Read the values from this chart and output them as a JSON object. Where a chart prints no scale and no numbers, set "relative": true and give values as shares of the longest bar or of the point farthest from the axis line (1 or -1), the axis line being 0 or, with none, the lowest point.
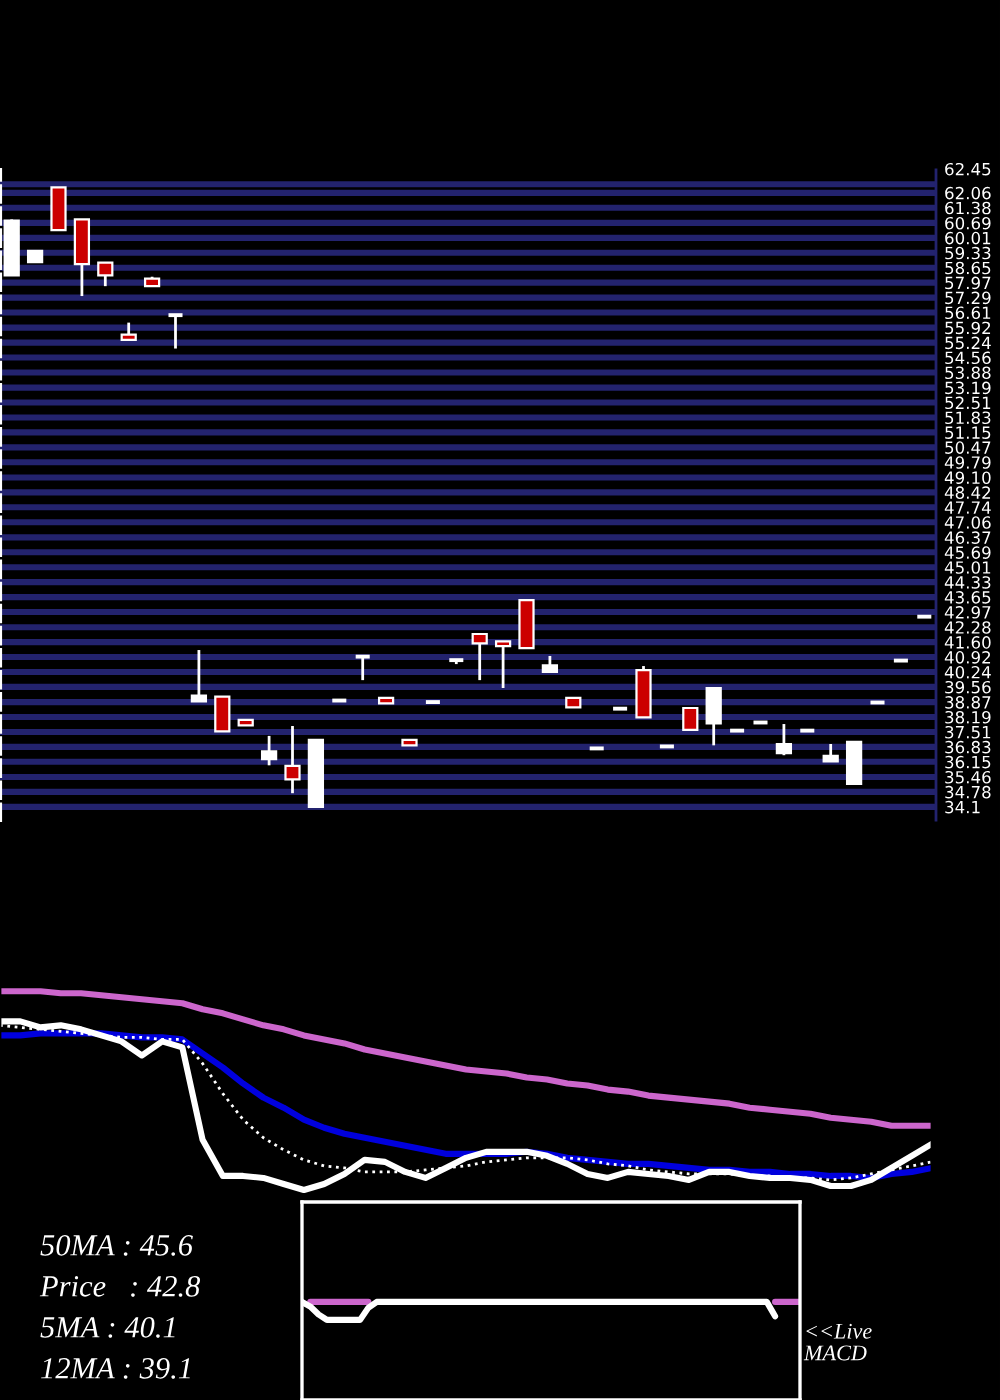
{
  "chart_data": [
    {
      "type": "candlestick",
      "categories": [
        null,
        null,
        null,
        null,
        null,
        null,
        null,
        null,
        null,
        null,
        null,
        null,
        null,
        null,
        null,
        null,
        null,
        null,
        null,
        null,
        null,
        null,
        null,
        null,
        null,
        null,
        null,
        null,
        null,
        null,
        null,
        null,
        null,
        null,
        null,
        null,
        null,
        null,
        null,
        null
      ],
      "ohlc": [
        [
          58.3,
          60.85,
          58.3,
          60.79
        ],
        [
          58.9,
          59.42,
          58.9,
          59.42
        ],
        [
          62.31,
          62.31,
          60.36,
          60.36
        ],
        [
          60.85,
          60.85,
          57.36,
          58.81
        ],
        [
          58.88,
          58.88,
          57.81,
          58.3
        ],
        [
          55.6,
          56.15,
          55.36,
          55.36
        ],
        [
          58.15,
          58.24,
          57.81,
          57.81
        ],
        [
          56.49,
          56.49,
          54.97,
          56.49
        ],
        [
          38.9,
          41.24,
          38.9,
          39.17
        ],
        [
          39.12,
          39.12,
          37.54,
          37.54
        ],
        [
          38.06,
          38.06,
          37.81,
          37.81
        ],
        [
          36.27,
          37.33,
          35.99,
          36.63
        ],
        [
          35.96,
          37.78,
          34.72,
          35.35
        ],
        [
          34.1,
          37.15,
          34.1,
          37.15
        ],
        [
          38.94,
          38.94,
          38.94,
          38.94
        ],
        [
          40.94,
          40.94,
          39.87,
          40.94
        ],
        [
          39.06,
          39.06,
          38.81,
          38.81
        ],
        [
          37.15,
          37.15,
          36.9,
          36.9
        ],
        [
          38.87,
          38.87,
          38.87,
          38.87
        ],
        [
          40.78,
          40.78,
          40.6,
          40.78
        ],
        [
          41.97,
          41.97,
          39.87,
          41.54
        ],
        [
          41.63,
          41.63,
          39.51,
          41.42
        ],
        [
          43.51,
          43.51,
          41.33,
          41.33
        ],
        [
          40.24,
          40.97,
          40.24,
          40.54
        ],
        [
          39.06,
          39.06,
          38.63,
          38.63
        ],
        [
          36.76,
          36.76,
          36.76,
          36.76
        ],
        [
          38.57,
          38.57,
          38.57,
          38.57
        ],
        [
          40.33,
          40.51,
          38.17,
          38.17
        ],
        [
          36.85,
          36.85,
          36.85,
          36.85
        ],
        [
          38.6,
          38.6,
          37.6,
          37.6
        ],
        [
          37.9,
          39.51,
          36.9,
          39.51
        ],
        [
          37.57,
          37.57,
          37.57,
          37.57
        ],
        [
          37.94,
          37.94,
          37.94,
          37.94
        ],
        [
          36.54,
          37.87,
          36.45,
          36.96
        ],
        [
          37.57,
          37.57,
          37.57,
          37.57
        ],
        [
          36.17,
          36.96,
          36.17,
          36.42
        ],
        [
          35.15,
          37.06,
          35.15,
          37.06
        ],
        [
          38.85,
          38.85,
          38.85,
          38.85
        ],
        [
          40.76,
          40.76,
          40.76,
          40.76
        ],
        [
          42.76,
          42.76,
          42.76,
          42.76
        ]
      ],
      "colors": [
        "#ffffff",
        "#ffffff",
        "#cc0000",
        "#cc0000",
        "#cc0000",
        "#cc0000",
        "#cc0000",
        "#ffffff",
        "#ffffff",
        "#cc0000",
        "#cc0000",
        "#ffffff",
        "#cc0000",
        "#ffffff",
        "#ffffff",
        "#ffffff",
        "#cc0000",
        "#cc0000",
        "#ffffff",
        "#ffffff",
        "#cc0000",
        "#cc0000",
        "#cc0000",
        "#ffffff",
        "#cc0000",
        "#ffffff",
        "#ffffff",
        "#cc0000",
        "#ffffff",
        "#cc0000",
        "#ffffff",
        "#ffffff",
        "#ffffff",
        "#ffffff",
        "#ffffff",
        "#ffffff",
        "#ffffff",
        "#ffffff",
        "#ffffff",
        "#ffffff"
      ],
      "ylim": [
        33.5,
        63.1
      ],
      "yticks": [
        62.06,
        61.38,
        60.69,
        60.01,
        59.33,
        58.65,
        57.97,
        57.29,
        56.61,
        55.92,
        55.24,
        54.56,
        53.88,
        53.19,
        52.51,
        51.83,
        51.15,
        50.47,
        49.79,
        {
          "value": 49.1,
          "label": "49.10"
        },
        48.42,
        47.74,
        47.06,
        46.37,
        45.69,
        45.01,
        44.33,
        43.65,
        42.97,
        42.28,
        {
          "value": 41.6,
          "label": "41.60"
        },
        40.92,
        40.24,
        39.56,
        38.87,
        38.19,
        37.51,
        36.83,
        36.15,
        35.46,
        34.78,
        34.1
      ],
      "ref_lines": [
        {
          "axis": "y",
          "value": 62.45,
          "label": "62.45"
        }
      ],
      "grid": "y",
      "tick_labels": "y"
    },
    {
      "type": "line",
      "relative": true,
      "categories": [
        null,
        null,
        null,
        null,
        null,
        null,
        null,
        null,
        null,
        null,
        null,
        null,
        null,
        null,
        null,
        null,
        null,
        null,
        null,
        null,
        null,
        null,
        null,
        null,
        null,
        null,
        null,
        null,
        null,
        null,
        null,
        null,
        null,
        null,
        null,
        null,
        null,
        null,
        null,
        null,
        null,
        null,
        null,
        null,
        null,
        null,
        null
      ],
      "series": [
        {
          "color": "#cc66cc",
          "values": [
            1.0,
            1.0,
            1.0,
            0.99,
            0.99,
            0.98,
            0.97,
            0.96,
            0.95,
            0.94,
            0.91,
            0.89,
            0.86,
            0.83,
            0.81,
            0.78,
            0.76,
            0.74,
            0.71,
            0.69,
            0.67,
            0.65,
            0.63,
            0.61,
            0.6,
            0.59,
            0.57,
            0.56,
            0.54,
            0.53,
            0.51,
            0.5,
            0.48,
            0.47,
            0.46,
            0.45,
            0.44,
            0.42,
            0.41,
            0.4,
            0.39,
            0.37,
            0.36,
            0.35,
            0.33,
            0.33,
            0.33
          ]
        },
        {
          "color": "#0000dd",
          "values": [
            0.78,
            0.78,
            0.79,
            0.79,
            0.79,
            0.79,
            0.78,
            0.77,
            0.77,
            0.76,
            0.69,
            0.62,
            0.54,
            0.47,
            0.42,
            0.36,
            0.32,
            0.29,
            0.27,
            0.25,
            0.23,
            0.21,
            0.19,
            0.19,
            0.19,
            0.19,
            0.2,
            0.19,
            0.17,
            0.16,
            0.15,
            0.14,
            0.14,
            0.13,
            0.12,
            0.11,
            0.11,
            0.1,
            0.1,
            0.09,
            0.09,
            0.08,
            0.08,
            0.07,
            0.09,
            0.1,
            0.12
          ]
        },
        {
          "color": "#ffffff",
          "values": [
            0.85,
            0.85,
            0.82,
            0.83,
            0.81,
            0.78,
            0.75,
            0.68,
            0.75,
            0.72,
            0.26,
            0.08,
            0.08,
            0.07,
            0.04,
            0.01,
            0.04,
            0.09,
            0.16,
            0.15,
            0.1,
            0.07,
            0.12,
            0.17,
            0.2,
            0.2,
            0.2,
            0.18,
            0.14,
            0.09,
            0.07,
            0.1,
            0.09,
            0.08,
            0.06,
            0.1,
            0.1,
            0.08,
            0.07,
            0.07,
            0.06,
            0.03,
            0.03,
            0.06,
            0.12,
            0.18,
            0.24
          ]
        },
        {
          "color": "#ffffff",
          "line_style": "dotted",
          "values": [
            0.83,
            0.82,
            0.81,
            0.8,
            0.79,
            0.78,
            0.77,
            0.77,
            0.76,
            0.76,
            0.64,
            0.49,
            0.36,
            0.27,
            0.21,
            0.16,
            0.13,
            0.12,
            0.1,
            0.1,
            0.1,
            0.11,
            0.12,
            0.13,
            0.15,
            0.16,
            0.17,
            0.17,
            0.17,
            0.16,
            0.14,
            0.13,
            0.11,
            0.1,
            0.09,
            0.09,
            0.09,
            0.08,
            0.08,
            0.07,
            0.07,
            0.06,
            0.07,
            0.09,
            0.11,
            0.13,
            0.15
          ]
        }
      ],
      "annotations": [
        "50MA : 45.6",
        "Price   : 42.8",
        "5MA : 40.1",
        "12MA : 39.1"
      ]
    },
    {
      "type": "line",
      "relative": true,
      "categories": [
        null,
        null,
        null,
        null,
        null,
        null,
        null,
        null,
        null,
        null,
        null,
        null,
        null,
        null,
        null,
        null,
        null,
        null,
        null,
        null,
        null,
        null,
        null,
        null,
        null,
        null,
        null,
        null,
        null,
        null,
        null,
        null,
        null,
        null,
        null,
        null,
        null,
        null,
        null,
        null,
        null,
        null,
        null,
        null,
        null,
        null,
        null,
        null,
        null,
        null,
        null,
        null,
        null,
        null,
        null,
        null,
        null,
        null,
        null,
        null,
        null
      ],
      "series": [
        {
          "color": "#cc66cc",
          "values": [
            null,
            1,
            1,
            1,
            1,
            1,
            1,
            1,
            1,
            null,
            null,
            null,
            null,
            null,
            null,
            null,
            null,
            null,
            null,
            null,
            null,
            null,
            null,
            null,
            null,
            null,
            null,
            null,
            null,
            null,
            null,
            null,
            null,
            null,
            null,
            null,
            null,
            null,
            null,
            null,
            null,
            null,
            null,
            null,
            null,
            null,
            null,
            null,
            null,
            null,
            null,
            null,
            null,
            null,
            null,
            null,
            null,
            1,
            1,
            1,
            1
          ]
        },
        {
          "color": "#ffffff",
          "values": [
            1,
            0.74,
            0.3,
            0,
            0,
            0,
            0,
            0,
            0.68,
            1,
            1,
            1,
            1,
            1,
            1,
            1,
            1,
            1,
            1,
            1,
            1,
            1,
            1,
            1,
            1,
            1,
            1,
            1,
            1,
            1,
            1,
            1,
            1,
            1,
            1,
            1,
            1,
            1,
            1,
            1,
            1,
            1,
            1,
            1,
            1,
            1,
            1,
            1,
            1,
            1,
            1,
            1,
            1,
            1,
            1,
            1,
            1,
            0.2,
            null,
            null,
            null
          ]
        }
      ],
      "annotations": [
        "<<Live\nMACD"
      ]
    }
  ]
}
